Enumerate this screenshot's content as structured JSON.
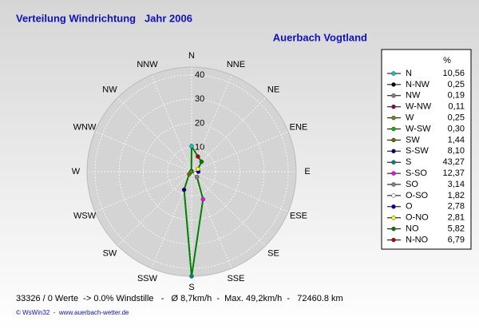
{
  "chart_data": {
    "type": "radar",
    "title": "Verteilung Windrichtung   Jahr 2006",
    "subtitle": "Auerbach Vogtland",
    "direction": "counterclockwise",
    "categories": [
      "N",
      "NNW",
      "NW",
      "WNW",
      "W",
      "WSW",
      "SW",
      "SSW",
      "S",
      "SSE",
      "SE",
      "ESE",
      "E",
      "ENE",
      "NE",
      "NNE"
    ],
    "legend_title": "%",
    "legend_names": [
      "N",
      "N-NW",
      "NW",
      "W-NW",
      "W",
      "W-SW",
      "SW",
      "S-SW",
      "S",
      "S-SO",
      "SO",
      "O-SO",
      "O",
      "O-NO",
      "NO",
      "N-NO"
    ],
    "values": [
      10.56,
      0.25,
      0.19,
      0.11,
      0.25,
      0.3,
      1.44,
      8.1,
      43.27,
      12.37,
      3.14,
      1.82,
      2.78,
      2.81,
      5.82,
      6.79
    ],
    "value_labels": [
      "10,56",
      "0,25",
      "0,19",
      "0,11",
      "0,25",
      "0,30",
      "1,44",
      "8,10",
      "43,27",
      "12,37",
      "3,14",
      "1,82",
      "2,78",
      "2,81",
      "5,82",
      "6,79"
    ],
    "colors": [
      "#00c8c8",
      "#000000",
      "#808080",
      "#800080",
      "#808000",
      "#00c000",
      "#806000",
      "#000080",
      "#008080",
      "#ff00ff",
      "#808080",
      "#ffffff",
      "#0000c8",
      "#ffff00",
      "#008000",
      "#c00000"
    ],
    "line_color": "#008000",
    "rlim": [
      0,
      43.27
    ],
    "rticks": [
      10,
      20,
      30,
      40
    ],
    "footer": "33326 / 0 Werte  -> 0.0% Windstille   -   Ø 8,7km/h  -  Max. 49,2km/h  -   72460.8 km",
    "credit": "© WsWin32  -  www.auerbach-wetter.de"
  }
}
